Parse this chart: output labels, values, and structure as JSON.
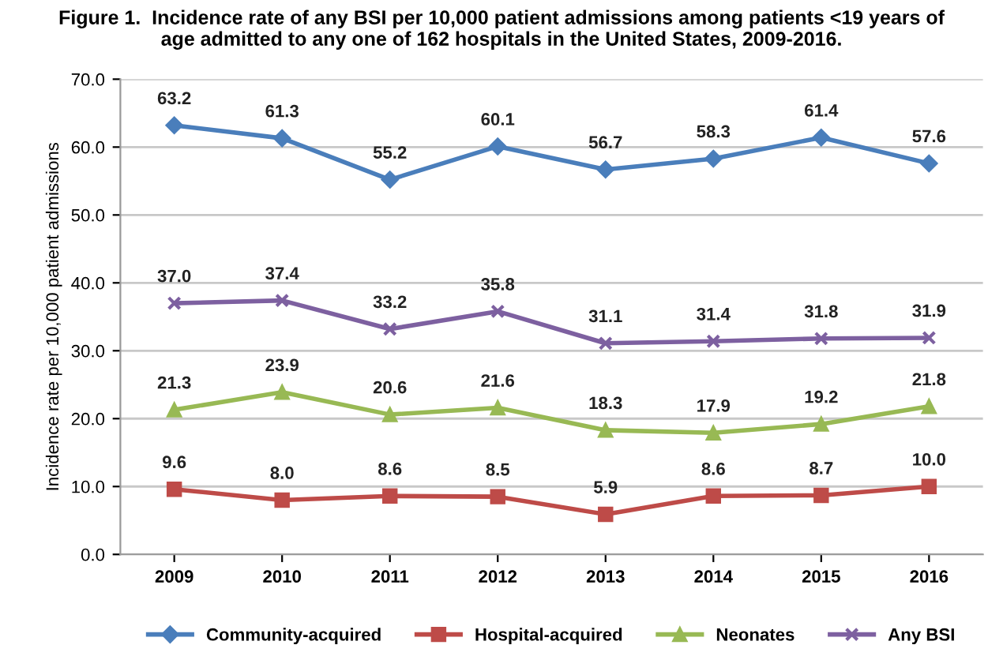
{
  "chart_data": {
    "type": "line",
    "title": "Figure 1.  Incidence rate of any BSI per 10,000 patient admissions among patients <19 years of\nage admitted to any one of 162 hospitals in the United States, 2009-2016.",
    "ylabel": "Incidence rate per 10,000 patient admissions",
    "categories": [
      "2009",
      "2010",
      "2011",
      "2012",
      "2013",
      "2014",
      "2015",
      "2016"
    ],
    "series": [
      {
        "name": "Community-acquired",
        "color": "#4a7ebb",
        "marker": "diamond",
        "values": [
          63.2,
          61.3,
          55.2,
          60.1,
          56.7,
          58.3,
          61.4,
          57.6
        ],
        "value_labels": [
          "63.2",
          "61.3",
          "55.2",
          "60.1",
          "56.7",
          "58.3",
          "61.4",
          "57.6"
        ]
      },
      {
        "name": "Hospital-acquired",
        "color": "#be4b48",
        "marker": "square",
        "values": [
          9.6,
          8.0,
          8.6,
          8.5,
          5.9,
          8.6,
          8.7,
          10.0
        ],
        "value_labels": [
          "9.6",
          "8.0",
          "8.6",
          "8.5",
          "5.9",
          "8.6",
          "8.7",
          "10.0"
        ]
      },
      {
        "name": "Neonates",
        "color": "#98b954",
        "marker": "triangle",
        "values": [
          21.3,
          23.9,
          20.6,
          21.6,
          18.3,
          17.9,
          19.2,
          21.8
        ],
        "value_labels": [
          "21.3",
          "23.9",
          "20.6",
          "21.6",
          "18.3",
          "17.9",
          "19.2",
          "21.8"
        ]
      },
      {
        "name": "Any BSI",
        "color": "#7d60a0",
        "marker": "cross",
        "values": [
          37.0,
          37.4,
          33.2,
          35.8,
          31.1,
          31.4,
          31.8,
          31.9
        ],
        "value_labels": [
          "37.0",
          "37.4",
          "33.2",
          "35.8",
          "31.1",
          "31.4",
          "31.8",
          "31.9"
        ]
      }
    ],
    "ylim": [
      0,
      70
    ],
    "yticks": [
      {
        "value": 0,
        "label": "0.0"
      },
      {
        "value": 10,
        "label": "10.0"
      },
      {
        "value": 20,
        "label": "20.0"
      },
      {
        "value": 30,
        "label": "30.0"
      },
      {
        "value": 40,
        "label": "40.0"
      },
      {
        "value": 50,
        "label": "50.0"
      },
      {
        "value": 60,
        "label": "60.0"
      },
      {
        "value": 70,
        "label": "70.0"
      }
    ],
    "grid": "y",
    "legend": "bottom",
    "line_style": "solid"
  }
}
